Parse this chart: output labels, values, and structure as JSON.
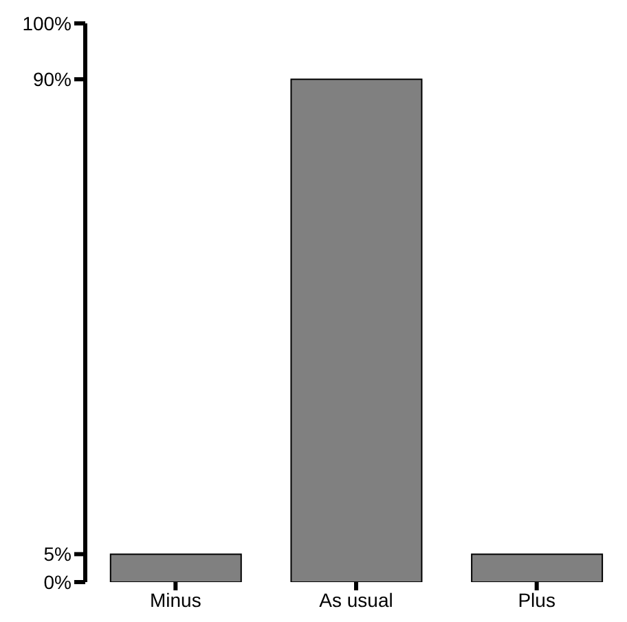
{
  "chart_data": {
    "type": "bar",
    "categories": [
      "Minus",
      "As usual",
      "Plus"
    ],
    "values": [
      5,
      90,
      5
    ],
    "color": "#808080",
    "ylim": [
      0,
      100
    ],
    "yticks": [
      {
        "value": 0,
        "label": "0%"
      },
      {
        "value": 5,
        "label": "5%"
      },
      {
        "value": 90,
        "label": "90%"
      },
      {
        "value": 100,
        "label": "100%"
      }
    ],
    "grid": false
  }
}
